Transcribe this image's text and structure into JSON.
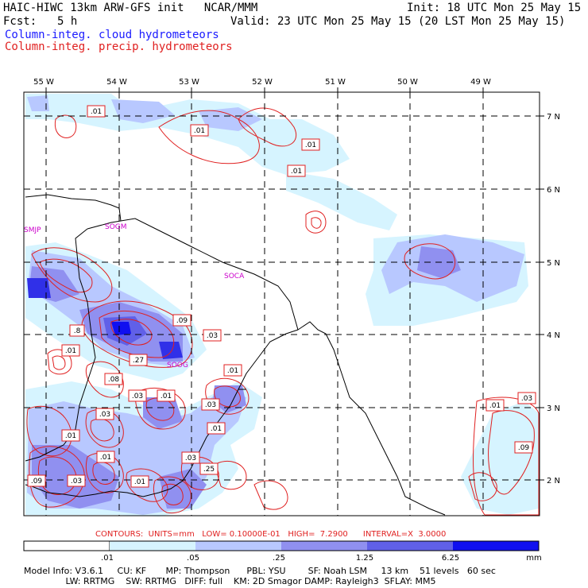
{
  "header": {
    "title": "HAIC-HIWC 13km ARW-GFS init   NCAR/MMM",
    "init": "Init: 18 UTC Mon 25 May 15",
    "fcst_label": "Fcst:",
    "fcst_value": "5 h",
    "valid": "Valid: 23 UTC Mon 25 May 15 (20 LST Mon 25 May 15)",
    "field1": "Column-integ. cloud hydrometeors",
    "field2": "Column-integ. precip. hydrometeors"
  },
  "axes": {
    "lon_labels": [
      "55 W",
      "54 W",
      "53 W",
      "52 W",
      "51 W",
      "50 W",
      "49 W"
    ],
    "lat_labels": [
      "7 N",
      "6 N",
      "5 N",
      "4 N",
      "3 N",
      "2 N"
    ]
  },
  "stations": [
    "SMJP",
    "SOGM",
    "SOCA",
    "SOOG"
  ],
  "contour_labels": [
    ".01",
    ".01",
    ".01",
    ".01",
    ".01",
    ".09",
    ".03",
    ".8",
    ".01",
    ".27",
    ".08",
    ".03",
    ".01",
    ".01",
    ".03",
    ".03",
    ".01",
    ".01",
    ".03",
    ".01",
    ".03",
    ".01",
    ".09",
    ".03",
    ".09",
    ".25"
  ],
  "contour_info": "CONTOURS:  UNITS=mm   LOW= 0.10000E-01   HIGH=  7.2900      INTERVAL=X  3.0000",
  "colorbar": {
    "ticks": [
      ".01",
      ".05",
      ".25",
      "1.25",
      "6.25"
    ],
    "unit": "mm",
    "colors": [
      "#ffffff",
      "#d6f4ff",
      "#b8c8ff",
      "#9090f0",
      "#6060e8",
      "#3030e8",
      "#1010f0"
    ]
  },
  "footer": {
    "line1": "Model Info: V3.6.1     CU: KF       MP: Thompson      PBL: YSU        SF: Noah LSM     13 km    51 levels   60 sec",
    "line2": "               LW: RRTMG    SW: RRTMG   DIFF: full    KM: 2D Smagor DAMP: Rayleigh3  SFLAY: MM5"
  }
}
